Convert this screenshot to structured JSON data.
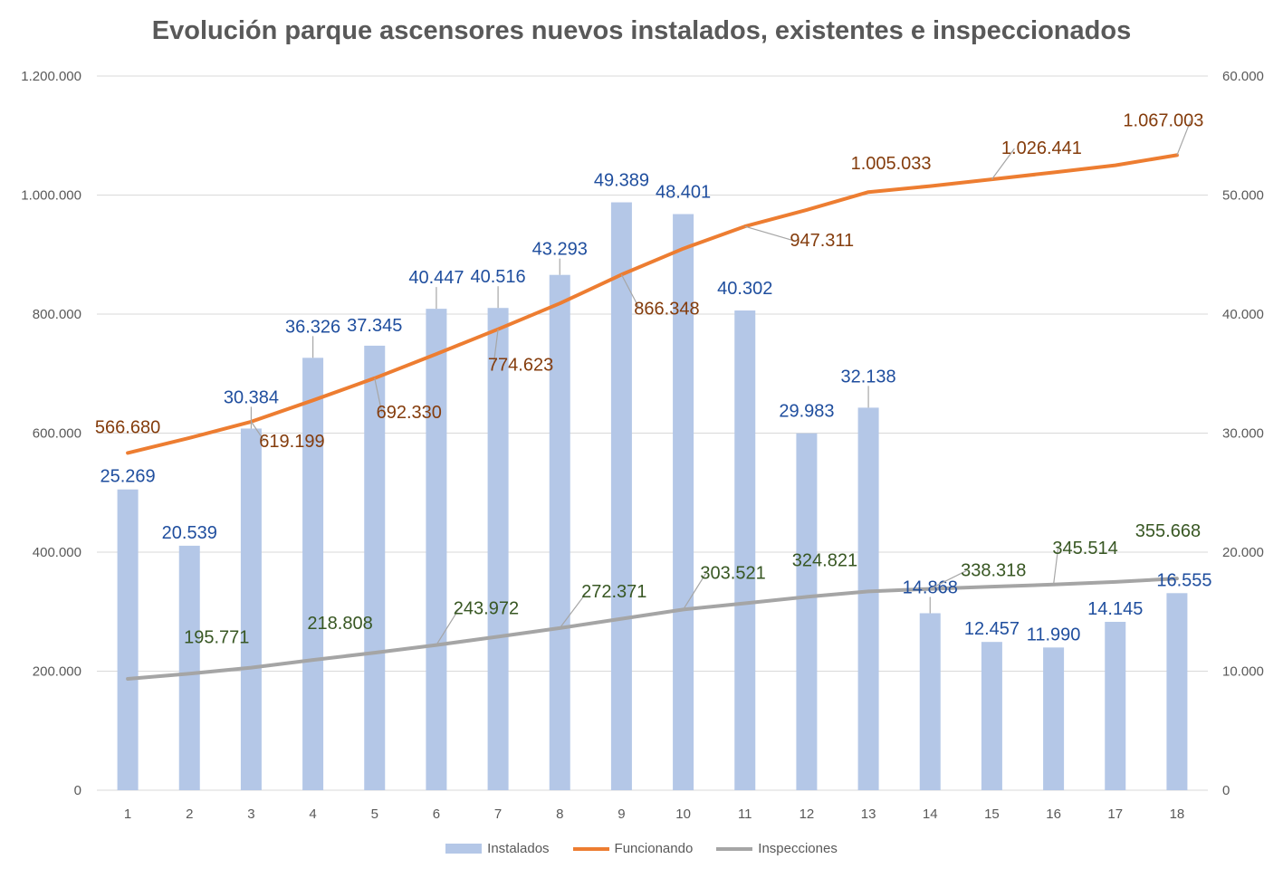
{
  "chart_data": {
    "type": "bar",
    "title": "Evolución parque ascensores nuevos instalados, existentes e inspeccionados",
    "categories": [
      "1",
      "2",
      "3",
      "4",
      "5",
      "6",
      "7",
      "8",
      "9",
      "10",
      "11",
      "12",
      "13",
      "14",
      "15",
      "16",
      "17",
      "18"
    ],
    "y_left": {
      "range": [
        0,
        1200000
      ],
      "ticks": [
        "0",
        "200.000",
        "400.000",
        "600.000",
        "800.000",
        "1.000.000",
        "1.200.000"
      ],
      "tick_values": [
        0,
        200000,
        400000,
        600000,
        800000,
        1000000,
        1200000
      ]
    },
    "y_right": {
      "range": [
        0,
        60000
      ],
      "ticks": [
        "0",
        "10.000",
        "20.000",
        "30.000",
        "40.000",
        "50.000",
        "60.000"
      ],
      "tick_values": [
        0,
        10000,
        20000,
        30000,
        40000,
        50000,
        60000
      ]
    },
    "grid": true,
    "legend_position": "bottom",
    "series": [
      {
        "name": "Instalados",
        "kind": "bar",
        "axis": "right",
        "color": "#b4c7e7",
        "label_color": "#1f4e9e",
        "values": [
          25269,
          20539,
          30384,
          36326,
          37345,
          40447,
          40516,
          43293,
          49389,
          48401,
          40302,
          29983,
          32138,
          14868,
          12457,
          11990,
          14145,
          16555
        ],
        "labels": [
          "25.269",
          "20.539",
          "30.384",
          "36.326",
          "37.345",
          "40.447",
          "40.516",
          "43.293",
          "49.389",
          "48.401",
          "40.302",
          "29.983",
          "32.138",
          "14.868",
          "12.457",
          "11.990",
          "14.145",
          "16.555"
        ]
      },
      {
        "name": "Funcionando",
        "kind": "line",
        "axis": "left",
        "color": "#ed7d31",
        "label_color": "#843c0c",
        "values": [
          566680,
          592000,
          619199,
          655000,
          692330,
          733000,
          774623,
          818000,
          866348,
          910000,
          947311,
          975000,
          1005033,
          1015000,
          1026441,
          1038000,
          1050000,
          1067003
        ],
        "labels": {
          "0": "566.680",
          "2": "619.199",
          "4": "692.330",
          "6": "774.623",
          "8": "866.348",
          "10": "947.311",
          "12": "1.005.033",
          "14": "1.026.441",
          "17": "1.067.003"
        }
      },
      {
        "name": "Inspecciones",
        "kind": "line",
        "axis": "left",
        "color": "#a5a5a5",
        "label_color": "#385723",
        "values": [
          187000,
          195771,
          206000,
          218808,
          231000,
          243972,
          258000,
          272371,
          288000,
          303521,
          314000,
          324821,
          334000,
          338318,
          342000,
          345514,
          350000,
          355668
        ],
        "labels": {
          "1": "195.771",
          "3": "218.808",
          "5": "243.972",
          "7": "272.371",
          "9": "303.521",
          "11": "324.821",
          "13": "338.318",
          "15": "345.514",
          "17": "355.668"
        }
      }
    ]
  },
  "legend": {
    "items": [
      {
        "label": "Instalados",
        "color": "#b4c7e7"
      },
      {
        "label": "Funcionando",
        "color": "#ed7d31"
      },
      {
        "label": "Inspecciones",
        "color": "#a5a5a5"
      }
    ]
  }
}
